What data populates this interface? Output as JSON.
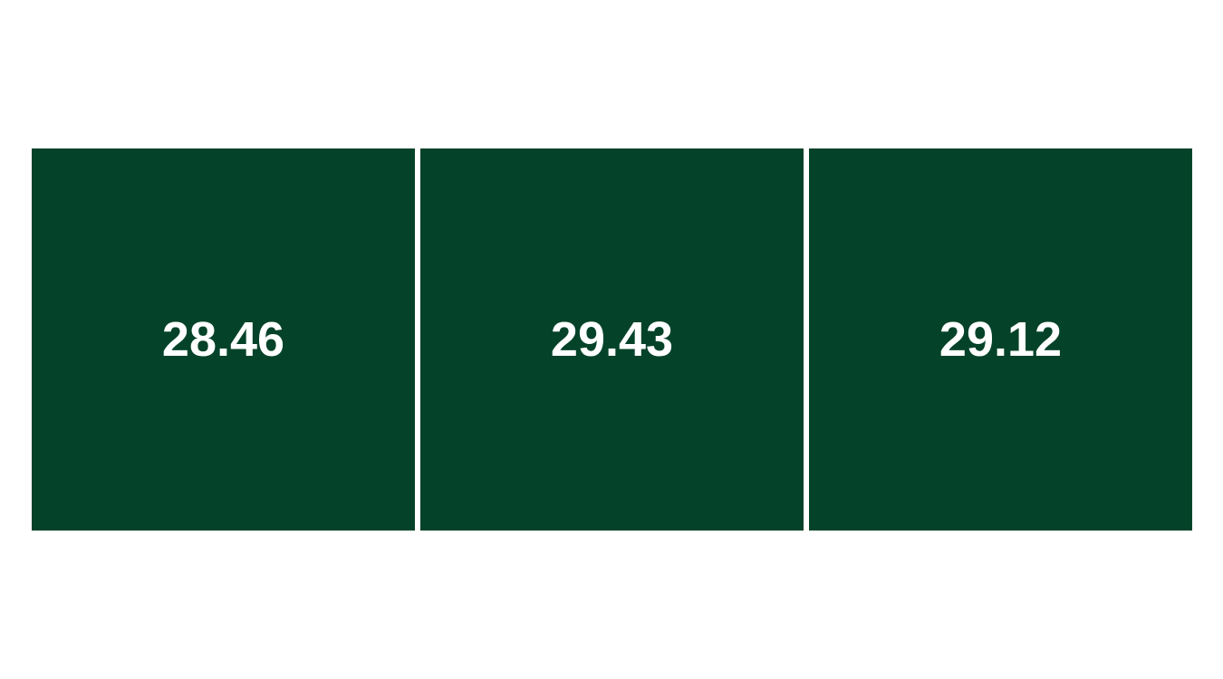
{
  "chart_data": {
    "type": "heatmap",
    "values": [
      "28.46",
      "29.43",
      "29.12"
    ],
    "cell_color": "#04432A",
    "label_color": "#FFFFFF",
    "grid": false,
    "legend": "none"
  }
}
